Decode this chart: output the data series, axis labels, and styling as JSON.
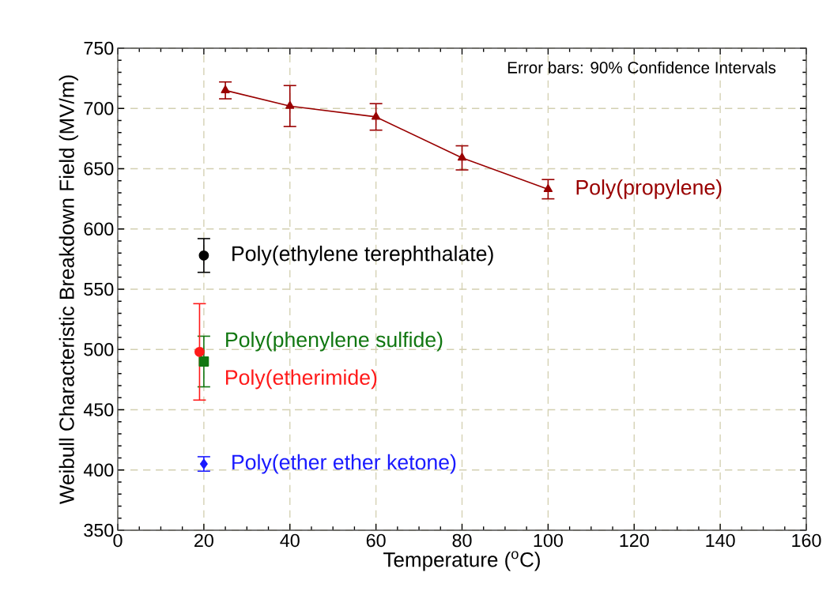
{
  "chart_data": {
    "type": "line",
    "xlabel": "Temperature ($^{o}$C)",
    "ylabel": "Weibull Characteristic Breakdown Field (MV/m)",
    "xlim": [
      0,
      160
    ],
    "xticks": [
      0,
      20,
      40,
      60,
      80,
      100,
      120,
      140,
      160
    ],
    "ylim": [
      350,
      750
    ],
    "yticks": [
      350,
      400,
      450,
      500,
      550,
      600,
      650,
      700,
      750
    ],
    "grid": true,
    "line_style": "solid",
    "annotations": [
      "Error bars: 90% Confidence Intervals"
    ],
    "series": [
      {
        "name": "Poly(propylene)",
        "color": "#990000",
        "marker": "triangle",
        "x": [
          25,
          40,
          60,
          80,
          100
        ],
        "values": [
          715,
          702,
          693,
          659,
          633
        ],
        "errors": [
          7,
          17,
          11,
          10,
          8
        ]
      },
      {
        "name": "Poly(ethylene terephthalate)",
        "color": "#000000",
        "marker": "circle",
        "x": [
          20
        ],
        "values": [
          578
        ],
        "errors": [
          14
        ]
      },
      {
        "name": "Poly(phenylene sulfide)",
        "color": "#117711",
        "marker": "square",
        "x": [
          20
        ],
        "values": [
          490
        ],
        "errors": [
          21
        ]
      },
      {
        "name": "Poly(etherimide)",
        "color": "#ff1a1a",
        "marker": "circle",
        "x": [
          19
        ],
        "values": [
          498
        ],
        "errors": [
          40
        ]
      },
      {
        "name": "Poly(ether ether ketone)",
        "color": "#1a1aff",
        "marker": "diamond",
        "x": [
          20
        ],
        "values": [
          405
        ],
        "errors": [
          6
        ]
      }
    ]
  }
}
